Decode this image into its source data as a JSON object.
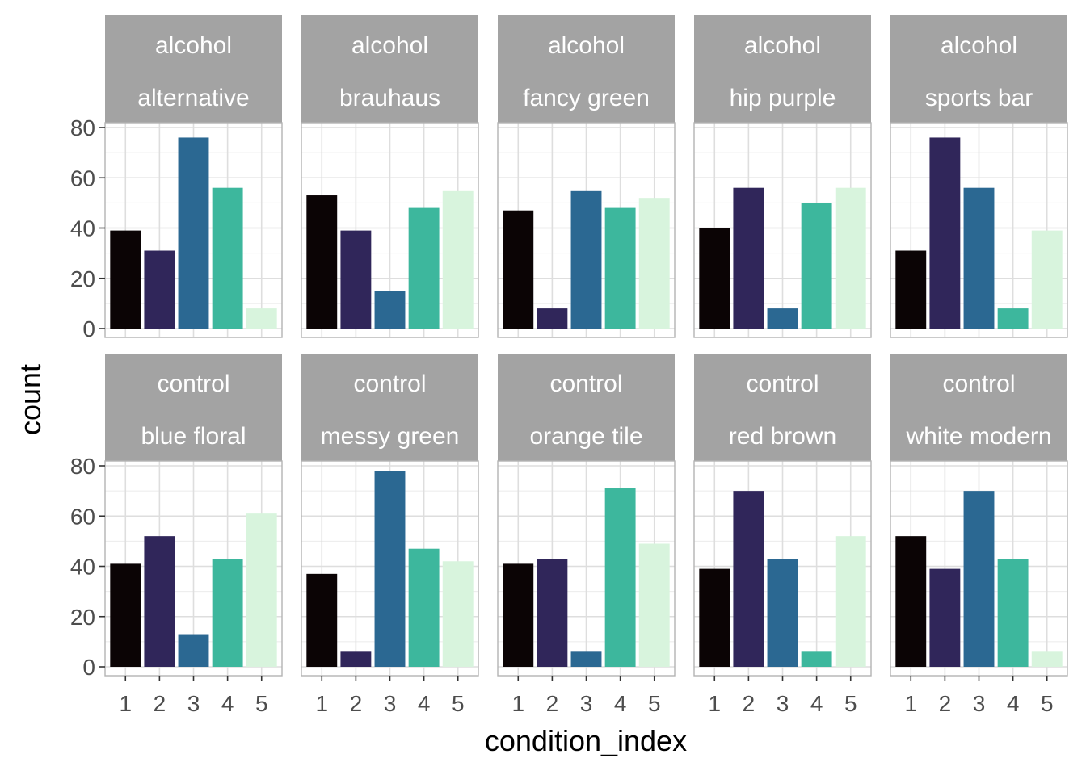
{
  "chart_data": {
    "type": "bar",
    "xlabel": "condition_index",
    "ylabel": "count",
    "x_ticks": [
      "1",
      "2",
      "3",
      "4",
      "5"
    ],
    "y_ticks": [
      "0",
      "20",
      "40",
      "60",
      "80"
    ],
    "ylim": [
      0,
      85
    ],
    "grid": true,
    "legend": "none",
    "colors": {
      "1": "#0b0405",
      "2": "#30265a",
      "3": "#2b6892",
      "4": "#3db79d",
      "5": "#d8f4dd"
    },
    "panels": [
      {
        "strip": [
          "alcohol",
          "alternative"
        ],
        "values": [
          39,
          31,
          76,
          56,
          8
        ]
      },
      {
        "strip": [
          "alcohol",
          "brauhaus"
        ],
        "values": [
          53,
          39,
          15,
          48,
          55
        ]
      },
      {
        "strip": [
          "alcohol",
          "fancy green"
        ],
        "values": [
          47,
          8,
          55,
          48,
          52
        ]
      },
      {
        "strip": [
          "alcohol",
          "hip purple"
        ],
        "values": [
          40,
          56,
          8,
          50,
          56
        ]
      },
      {
        "strip": [
          "alcohol",
          "sports bar"
        ],
        "values": [
          31,
          76,
          56,
          8,
          39
        ]
      },
      {
        "strip": [
          "control",
          "blue floral"
        ],
        "values": [
          41,
          52,
          13,
          43,
          61
        ]
      },
      {
        "strip": [
          "control",
          "messy green"
        ],
        "values": [
          37,
          6,
          78,
          47,
          42
        ]
      },
      {
        "strip": [
          "control",
          "orange tile"
        ],
        "values": [
          41,
          43,
          6,
          71,
          49
        ]
      },
      {
        "strip": [
          "control",
          "red brown"
        ],
        "values": [
          39,
          70,
          43,
          6,
          52
        ]
      },
      {
        "strip": [
          "control",
          "white modern"
        ],
        "values": [
          52,
          39,
          70,
          43,
          6
        ]
      }
    ]
  }
}
